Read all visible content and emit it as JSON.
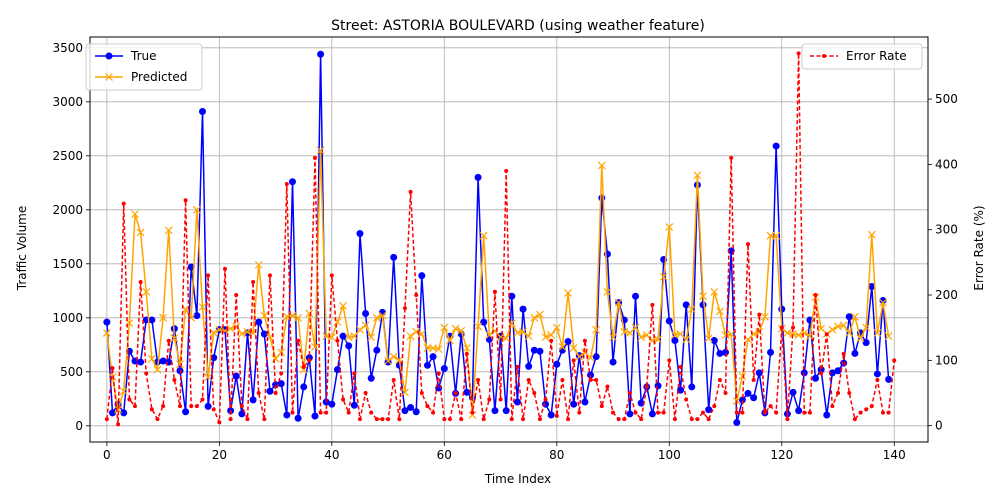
{
  "chart_data": {
    "type": "line",
    "title": "Street: ASTORIA BOULEVARD (using weather feature)",
    "xlabel": "Time Index",
    "ylabel_left": "Traffic Volume",
    "ylabel_right": "Error Rate (%)",
    "xlim": [
      -3,
      146
    ],
    "ylim_left": [
      -150,
      3600
    ],
    "ylim_right": [
      -25,
      595
    ],
    "x_ticks": [
      0,
      20,
      40,
      60,
      80,
      100,
      120,
      140
    ],
    "y_ticks_left": [
      0,
      500,
      1000,
      1500,
      2000,
      2500,
      3000,
      3500
    ],
    "y_ticks_right": [
      0,
      100,
      200,
      300,
      400,
      500
    ],
    "grid": true,
    "legend_left_position": "upper-left",
    "legend_right_position": "upper-right",
    "series": [
      {
        "name": "True",
        "axis": "left",
        "color": "#0000ff",
        "marker": "circle",
        "values": [
          960,
          120,
          200,
          120,
          690,
          600,
          590,
          980,
          980,
          590,
          600,
          590,
          900,
          510,
          130,
          1470,
          1020,
          2910,
          180,
          630,
          890,
          890,
          140,
          460,
          110,
          860,
          240,
          960,
          850,
          320,
          380,
          390,
          100,
          2260,
          70,
          360,
          630,
          90,
          3440,
          220,
          200,
          520,
          830,
          740,
          190,
          1780,
          1040,
          440,
          700,
          1050,
          590,
          1560,
          560,
          140,
          170,
          130,
          1390,
          560,
          640,
          350,
          530,
          830,
          300,
          850,
          310,
          260,
          2300,
          960,
          800,
          140,
          830,
          140,
          1200,
          220,
          1080,
          550,
          700,
          690,
          200,
          100,
          570,
          700,
          780,
          200,
          650,
          220,
          470,
          640,
          2110,
          1590,
          590,
          1140,
          980,
          110,
          1200,
          210,
          360,
          110,
          370,
          1540,
          970,
          790,
          330,
          1120,
          360,
          2230,
          1120,
          150,
          790,
          670,
          680,
          1620,
          30,
          240,
          300,
          260,
          490,
          120,
          680,
          2590,
          1080,
          110,
          310,
          140,
          490,
          980,
          440,
          520,
          100,
          490,
          510,
          580,
          1010,
          670,
          860,
          770,
          1290,
          480,
          1160,
          430
        ]
      },
      {
        "name": "Predicted",
        "axis": "left",
        "color": "#ffa500",
        "marker": "x",
        "values": [
          860,
          450,
          150,
          320,
          950,
          1960,
          1790,
          1240,
          620,
          520,
          1000,
          1810,
          810,
          570,
          1080,
          1000,
          2000,
          1100,
          450,
          860,
          890,
          880,
          900,
          920,
          850,
          870,
          860,
          1490,
          1020,
          820,
          620,
          680,
          1010,
          1020,
          1000,
          520,
          1040,
          730,
          2550,
          830,
          820,
          960,
          1110,
          820,
          830,
          890,
          930,
          820,
          1000,
          1020,
          600,
          640,
          610,
          310,
          830,
          870,
          850,
          720,
          720,
          710,
          910,
          790,
          900,
          880,
          720,
          100,
          920,
          1760,
          840,
          880,
          820,
          810,
          950,
          860,
          870,
          830,
          1000,
          1030,
          820,
          840,
          910,
          730,
          1230,
          720,
          640,
          680,
          630,
          890,
          2410,
          1240,
          820,
          1140,
          870,
          860,
          910,
          820,
          840,
          790,
          800,
          1380,
          1840,
          840,
          850,
          800,
          1080,
          2320,
          1200,
          810,
          1240,
          1060,
          840,
          850,
          230,
          460,
          800,
          850,
          870,
          1010,
          1760,
          1760,
          900,
          860,
          850,
          840,
          860,
          830,
          1190,
          900,
          850,
          890,
          920,
          930,
          860,
          1010,
          810,
          910,
          1770,
          860,
          1140,
          830
        ]
      },
      {
        "name": "Error Rate",
        "axis": "right",
        "color": "#ff0000",
        "marker": "dot",
        "dashed": true,
        "values": [
          10,
          88,
          2,
          340,
          40,
          30,
          220,
          80,
          25,
          10,
          30,
          130,
          70,
          30,
          345,
          30,
          30,
          40,
          230,
          25,
          5,
          240,
          10,
          200,
          30,
          10,
          220,
          50,
          10,
          230,
          50,
          80,
          370,
          20,
          130,
          90,
          100,
          410,
          20,
          20,
          230,
          130,
          40,
          20,
          80,
          10,
          50,
          20,
          10,
          10,
          10,
          70,
          10,
          180,
          358,
          200,
          50,
          30,
          20,
          80,
          10,
          10,
          50,
          10,
          110,
          20,
          70,
          10,
          40,
          205,
          40,
          390,
          10,
          90,
          10,
          70,
          50,
          10,
          40,
          130,
          15,
          70,
          10,
          100,
          20,
          130,
          70,
          70,
          30,
          60,
          20,
          10,
          10,
          50,
          20,
          10,
          60,
          185,
          20,
          20,
          100,
          10,
          90,
          40,
          10,
          10,
          20,
          10,
          30,
          70,
          50,
          410,
          20,
          20,
          278,
          70,
          170,
          20,
          30,
          20,
          150,
          10,
          150,
          570,
          20,
          20,
          200,
          80,
          140,
          30,
          50,
          110,
          50,
          10,
          20,
          25,
          30,
          70,
          20,
          20,
          100
        ]
      }
    ]
  }
}
